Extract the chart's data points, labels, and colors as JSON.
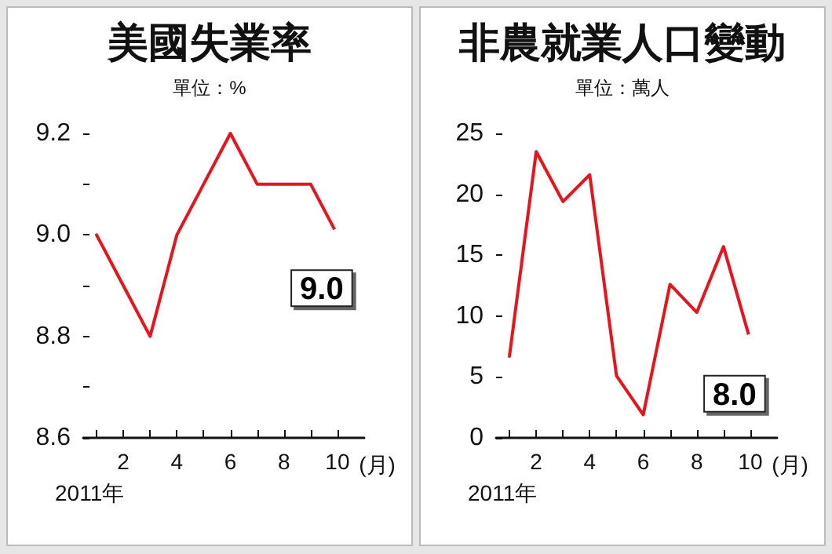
{
  "chart_data": [
    {
      "type": "line",
      "title": "美國失業率",
      "subtitle": "單位：%",
      "xlabel": "(月)",
      "annotations": [
        {
          "text": "9.0",
          "x": 10,
          "y": 9.0
        },
        "2011年"
      ],
      "x": [
        1,
        2,
        3,
        4,
        5,
        6,
        7,
        8,
        9,
        10
      ],
      "series": [
        {
          "color": "#e8141c",
          "values": [
            9.0,
            8.9,
            8.8,
            9.0,
            9.1,
            9.2,
            9.1,
            9.1,
            9.1,
            9.0
          ]
        }
      ],
      "xlim": [
        0.5,
        11
      ],
      "xticks": [
        {
          "value": 1,
          "label": null
        },
        2,
        {
          "value": 3,
          "label": null
        },
        4,
        {
          "value": 5,
          "label": null
        },
        6,
        {
          "value": 7,
          "label": null
        },
        8,
        {
          "value": 9,
          "label": null
        },
        10
      ],
      "ylim": [
        8.6,
        9.2
      ],
      "yticks": [
        {
          "value": 8.6,
          "label": "8.6"
        },
        {
          "value": 8.7,
          "label": null
        },
        {
          "value": 8.8,
          "label": "8.8"
        },
        {
          "value": 8.9,
          "label": null
        },
        {
          "value": 9.0,
          "label": "9.0"
        },
        {
          "value": 9.1,
          "label": null
        },
        {
          "value": 9.2,
          "label": "9.2"
        }
      ],
      "grid": false,
      "marker": "none",
      "line_style": "solid"
    },
    {
      "type": "line",
      "title": "非農就業人口變動",
      "subtitle": "單位：萬人",
      "xlabel": "(月)",
      "annotations": [
        {
          "text": "8.0",
          "x": 10,
          "y": 8.0
        },
        "2011年"
      ],
      "x": [
        1,
        2,
        3,
        4,
        5,
        6,
        7,
        8,
        9,
        10
      ],
      "series": [
        {
          "color": "#e8141c",
          "values": [
            6.7,
            23.5,
            19.4,
            21.6,
            5.1,
            1.9,
            12.6,
            10.3,
            15.7,
            8.0
          ]
        }
      ],
      "xlim": [
        0.5,
        11
      ],
      "xticks": [
        {
          "value": 1,
          "label": null
        },
        2,
        {
          "value": 3,
          "label": null
        },
        4,
        {
          "value": 5,
          "label": null
        },
        6,
        {
          "value": 7,
          "label": null
        },
        8,
        {
          "value": 9,
          "label": null
        },
        10
      ],
      "ylim": [
        0,
        25
      ],
      "yticks": [
        0,
        5,
        10,
        15,
        20,
        25
      ],
      "grid": false,
      "marker": "none",
      "line_style": "solid"
    }
  ]
}
